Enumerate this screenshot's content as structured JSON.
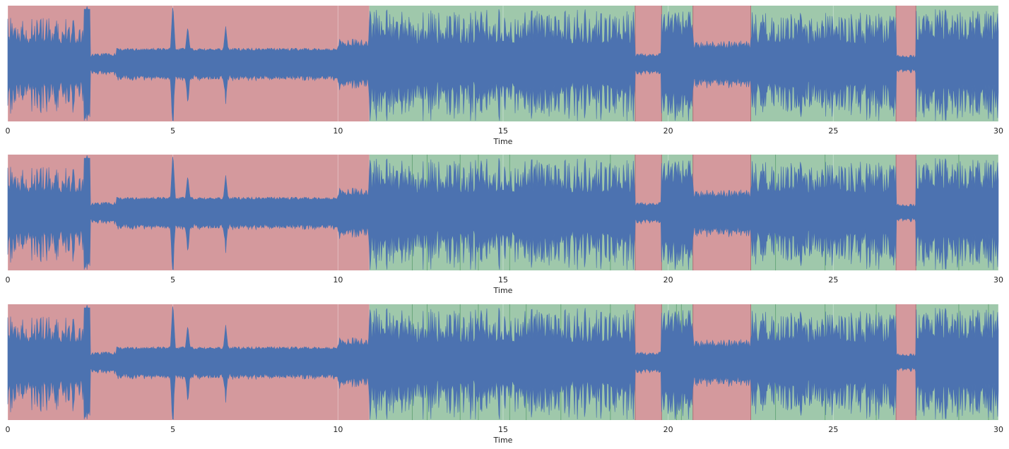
{
  "chart_data": [
    {
      "type": "area",
      "title": "",
      "xlabel": "Time",
      "ylabel": "",
      "xlim": [
        0,
        30
      ],
      "xticks": [
        0,
        5,
        10,
        15,
        20,
        25,
        30
      ],
      "grid": true,
      "segments": [
        {
          "start": 0,
          "end": 10.95,
          "label": "red"
        },
        {
          "start": 10.95,
          "end": 19.0,
          "label": "green"
        },
        {
          "start": 19.0,
          "end": 19.8,
          "label": "red"
        },
        {
          "start": 19.8,
          "end": 20.75,
          "label": "green"
        },
        {
          "start": 20.75,
          "end": 22.5,
          "label": "red"
        },
        {
          "start": 22.5,
          "end": 26.9,
          "label": "green"
        },
        {
          "start": 26.9,
          "end": 27.5,
          "label": "red"
        },
        {
          "start": 27.5,
          "end": 30,
          "label": "green"
        }
      ],
      "boundaries": [
        19.0,
        19.8,
        20.75,
        22.5,
        26.9,
        27.5
      ]
    },
    {
      "type": "area",
      "title": "",
      "xlabel": "Time",
      "ylabel": "",
      "xlim": [
        0,
        30
      ],
      "xticks": [
        0,
        5,
        10,
        15,
        20,
        25,
        30
      ],
      "grid": true,
      "segments": [
        {
          "start": 0,
          "end": 10.95,
          "label": "red"
        },
        {
          "start": 10.95,
          "end": 19.0,
          "label": "green"
        },
        {
          "start": 19.0,
          "end": 19.8,
          "label": "red"
        },
        {
          "start": 19.8,
          "end": 20.75,
          "label": "green"
        },
        {
          "start": 20.75,
          "end": 22.5,
          "label": "red"
        },
        {
          "start": 22.5,
          "end": 26.9,
          "label": "green"
        },
        {
          "start": 26.9,
          "end": 27.5,
          "label": "red"
        },
        {
          "start": 27.5,
          "end": 30,
          "label": "green"
        }
      ],
      "boundaries": [
        12.25,
        12.7,
        13.7,
        14.25,
        15.2,
        18.25,
        19.0,
        19.8,
        20.75,
        22.5,
        23.25,
        24.75,
        26.9,
        27.5,
        28.8
      ]
    },
    {
      "type": "area",
      "title": "",
      "xlabel": "Time",
      "ylabel": "",
      "xlim": [
        0,
        30
      ],
      "xticks": [
        0,
        5,
        10,
        15,
        20,
        25,
        30
      ],
      "grid": true,
      "segments": [
        {
          "start": 0,
          "end": 10.95,
          "label": "red"
        },
        {
          "start": 10.95,
          "end": 19.0,
          "label": "green"
        },
        {
          "start": 19.0,
          "end": 19.8,
          "label": "red"
        },
        {
          "start": 19.8,
          "end": 20.75,
          "label": "green"
        },
        {
          "start": 20.75,
          "end": 22.5,
          "label": "red"
        },
        {
          "start": 22.5,
          "end": 26.9,
          "label": "green"
        },
        {
          "start": 26.9,
          "end": 27.5,
          "label": "red"
        },
        {
          "start": 27.5,
          "end": 30,
          "label": "green"
        }
      ],
      "boundaries": [
        12.25,
        12.7,
        13.7,
        14.25,
        15.2,
        15.7,
        16.75,
        18.25,
        19.0,
        19.8,
        20.25,
        20.4,
        20.75,
        22.5,
        23.25,
        24.75,
        26.3,
        26.9,
        27.5,
        28.8,
        29.7
      ]
    }
  ],
  "colors": {
    "red_segment": "#d4999d",
    "green_segment": "#9fc8ab",
    "waveform": "#4c72b0",
    "red_boundary": "#b07078",
    "green_boundary": "#6aa87c",
    "grid": "#e8e8e8"
  }
}
